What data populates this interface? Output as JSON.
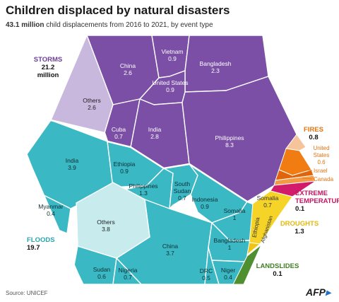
{
  "header": {
    "title": "Children displaced by natural disasters",
    "subtitle_bold": "43.1 million",
    "subtitle_rest": " child displacements from 2016 to 2021,",
    "subtitle_tail": " by event type"
  },
  "footer": {
    "source": "Source: UNICEF",
    "logo": "AFP"
  },
  "colors": {
    "storms": "#7b4fa6",
    "storms_others": "#c9b8dd",
    "storms_label": "#6b3f96",
    "floods": "#3ab8c4",
    "floods_others": "#c8ecee",
    "floods_label": "#2aa6b2",
    "fires": "#f07c12",
    "fires_light": "#f6c49a",
    "fires_label": "#e07512",
    "extreme": "#d21b6b",
    "extreme_label": "#c4155f",
    "droughts": "#f5d327",
    "droughts_label": "#e3b90b",
    "landslides": "#4f8f2f",
    "landslides_label": "#3f7d22"
  },
  "chart_data": {
    "type": "voronoi-treemap",
    "unit": "million child displacements",
    "total": 43.1,
    "categories": [
      {
        "key": "storms",
        "name": "STORMS",
        "value": "21.2",
        "unit_text": "million",
        "cells": [
          {
            "name": "China",
            "value": 2.6
          },
          {
            "name": "Vietnam",
            "value": 0.9
          },
          {
            "name": "Bangladesh",
            "value": 2.3
          },
          {
            "name": "United States",
            "value": 0.9
          },
          {
            "name": "Others",
            "value": 2.6
          },
          {
            "name": "Cuba",
            "value": 0.7
          },
          {
            "name": "India",
            "value": 2.8
          },
          {
            "name": "Philippines",
            "value": 8.3
          }
        ]
      },
      {
        "key": "floods",
        "name": "FLOODS",
        "value": "19.7",
        "cells": [
          {
            "name": "India",
            "value": 3.9
          },
          {
            "name": "Ethiopia",
            "value": 0.9
          },
          {
            "name": "Philippines",
            "value": 1.3
          },
          {
            "name": "South Sudan",
            "value": 0.7
          },
          {
            "name": "Indonesia",
            "value": 0.9
          },
          {
            "name": "Somalia",
            "value": 1
          },
          {
            "name": "Myanmar",
            "value": 0.4
          },
          {
            "name": "Others",
            "value": 3.8
          },
          {
            "name": "China",
            "value": 3.7
          },
          {
            "name": "Bangladesh",
            "value": 1
          },
          {
            "name": "Sudan",
            "value": 0.6
          },
          {
            "name": "Nigeria",
            "value": 0.7
          },
          {
            "name": "DRC",
            "value": 0.5
          },
          {
            "name": "Niger",
            "value": 0.4
          }
        ]
      },
      {
        "key": "fires",
        "name": "FIRES",
        "value": "0.8",
        "cells": [
          {
            "name": "United States",
            "value": 0.6
          },
          {
            "name": "Israel",
            "value": null
          },
          {
            "name": "Canada",
            "value": null
          }
        ]
      },
      {
        "key": "extreme",
        "name": "EXTREME TEMPERATURES",
        "name_lines": [
          "EXTREME",
          "TEMPERATURES"
        ],
        "value": "0.1",
        "cells": []
      },
      {
        "key": "droughts",
        "name": "DROUGHTS",
        "value": "1.3",
        "cells": [
          {
            "name": "Somalia",
            "value": 0.7
          },
          {
            "name": "Ethiopia",
            "value": null
          },
          {
            "name": "Afghanistan",
            "value": null
          }
        ]
      },
      {
        "key": "landslides",
        "name": "LANDSLIDES",
        "value": "0.1",
        "cells": []
      }
    ]
  }
}
